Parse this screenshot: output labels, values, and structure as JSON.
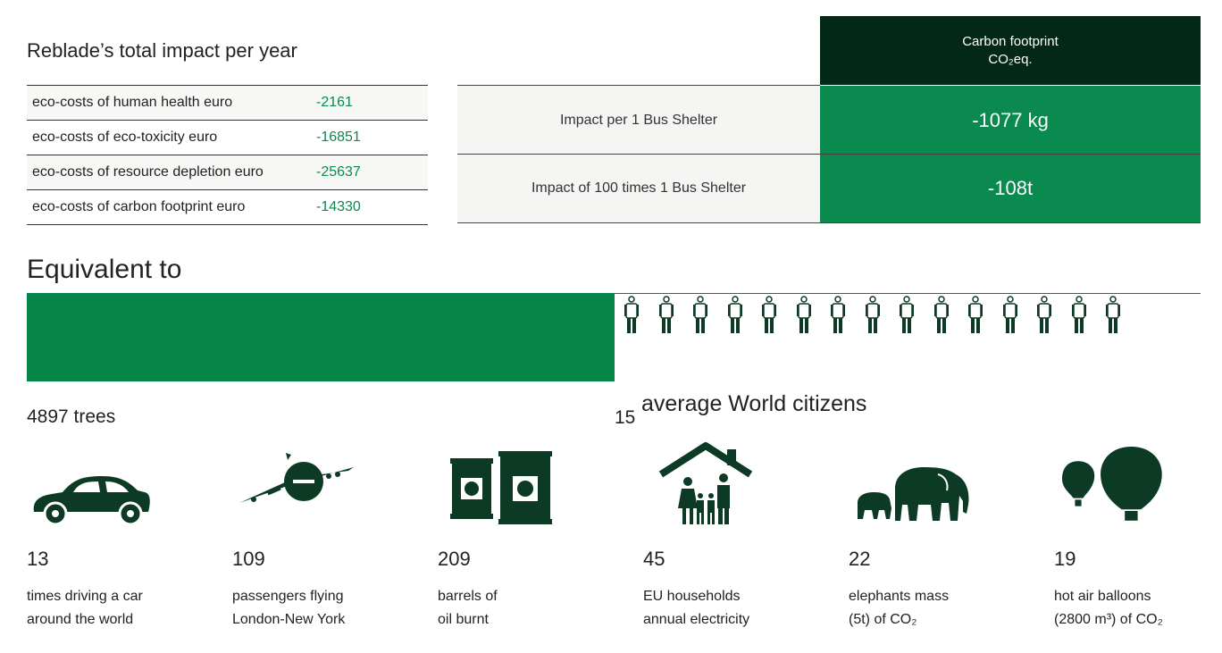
{
  "impact_section": {
    "title": "Reblade’s total impact per year",
    "rows": [
      {
        "label": "eco-costs of human health euro",
        "value": "-2161"
      },
      {
        "label": "eco-costs of eco-toxicity euro",
        "value": "-16851"
      },
      {
        "label": "eco-costs of resource depletion euro",
        "value": "-25637"
      },
      {
        "label": "eco-costs of carbon footprint euro",
        "value": "-14330"
      }
    ]
  },
  "carbon_table": {
    "header_line1": "Carbon footprint",
    "header_line2": "CO₂eq.",
    "rows": [
      {
        "label": "Impact per 1 Bus Shelter",
        "value": "-1077 kg"
      },
      {
        "label": "Impact of 100 times 1 Bus Shelter",
        "value": "-108t"
      }
    ]
  },
  "equivalent": {
    "title": "Equivalent to",
    "trees_label": "4897 trees",
    "citizens_count": "15",
    "citizens_label": "average World citizens",
    "citizen_icons": 15
  },
  "stats": [
    {
      "icon": "car-icon",
      "number": "13",
      "line1": "times driving a car",
      "line2": "around the world"
    },
    {
      "icon": "airplane-icon",
      "number": "109",
      "line1": "passengers flying",
      "line2": "London-New York"
    },
    {
      "icon": "oil-barrels-icon",
      "number": "209",
      "line1": "barrels of",
      "line2": "oil burnt"
    },
    {
      "icon": "household-icon",
      "number": "45",
      "line1": "EU households",
      "line2": "annual electricity"
    },
    {
      "icon": "elephants-icon",
      "number": "22",
      "line1": "elephants mass",
      "line2": "(5t) of CO₂"
    },
    {
      "icon": "hot-air-balloons-icon",
      "number": "19",
      "line1": "hot air balloons",
      "line2": "(2800 m³) of CO₂"
    }
  ],
  "colors": {
    "dark_green": "#032818",
    "accent_green": "#0b8a4f",
    "icon_green": "#0d3a24"
  }
}
